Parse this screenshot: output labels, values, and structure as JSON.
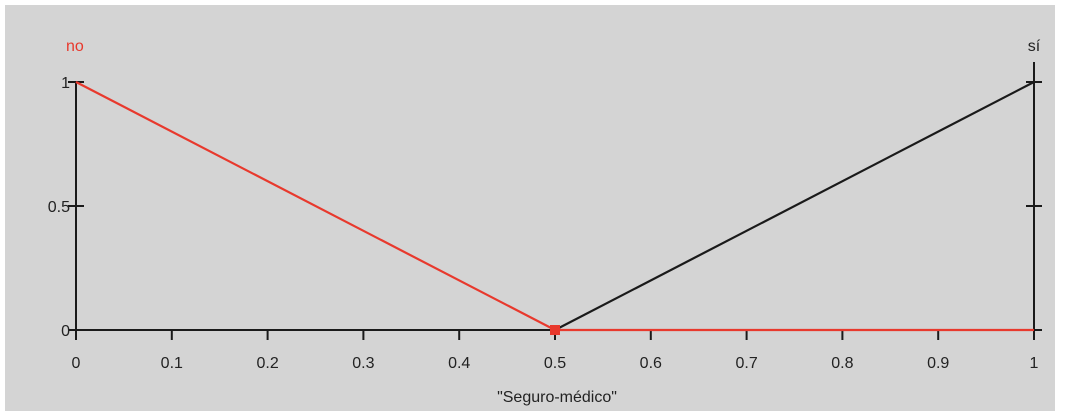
{
  "colors": {
    "background": "#d4d4d4",
    "axis": "#1a1a1a",
    "no": "#e8392d",
    "si": "#1a1a1a"
  },
  "chart_data": {
    "type": "line",
    "title": "",
    "xlabel": "\"Seguro-médico\"",
    "ylabel": "",
    "xlim": [
      0,
      1
    ],
    "ylim": [
      0,
      1
    ],
    "x_ticks": [
      "0",
      "0.1",
      "0.2",
      "0.3",
      "0.4",
      "0.5",
      "0.6",
      "0.7",
      "0.8",
      "0.9",
      "1"
    ],
    "y_ticks": [
      "0",
      "0.5",
      "1"
    ],
    "grid": false,
    "legend": "none",
    "series": [
      {
        "name": "no",
        "color": "#e8392d",
        "points": [
          [
            0,
            1
          ],
          [
            0.5,
            0
          ],
          [
            1,
            0
          ]
        ]
      },
      {
        "name": "sí",
        "color": "#1a1a1a",
        "points": [
          [
            0.5,
            0
          ],
          [
            1,
            1
          ]
        ]
      }
    ],
    "marker": {
      "x": 0.5,
      "y": 0
    }
  }
}
